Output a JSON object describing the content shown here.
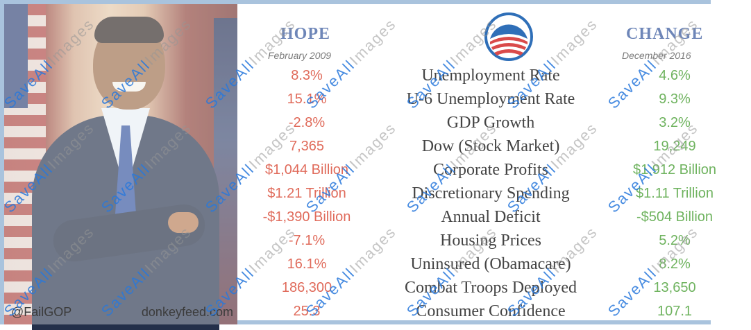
{
  "headers": {
    "hope_title": "HOPE",
    "hope_date": "February 2009",
    "change_title": "CHANGE",
    "change_date": "December 2016"
  },
  "credits": {
    "handle": "@FailGOP",
    "site": "donkeyfeed.com"
  },
  "watermark": {
    "part1": "SaveAll",
    "part2": "Images"
  },
  "rows": [
    {
      "hope": "8.3%",
      "metric": "Unemployment Rate",
      "change": "4.6%"
    },
    {
      "hope": "15.1%",
      "metric": "U-6 Unemployment Rate",
      "change": "9.3%"
    },
    {
      "hope": "-2.8%",
      "metric": "GDP Growth",
      "change": "3.2%"
    },
    {
      "hope": "7,365",
      "metric": "Dow (Stock Market)",
      "change": "19,249"
    },
    {
      "hope": "$1,044 Billion",
      "metric": "Corporate Profits",
      "change": "$1,912 Billion"
    },
    {
      "hope": "$1.21 Trillion",
      "metric": "Discretionary Spending",
      "change": "$1.11 Trillion"
    },
    {
      "hope": "-$1,390 Billion",
      "metric": "Annual Deficit",
      "change": "-$504 Billion"
    },
    {
      "hope": "-7.1%",
      "metric": "Housing Prices",
      "change": "5.2%"
    },
    {
      "hope": "16.1%",
      "metric": "Uninsured (Obamacare)",
      "change": "8.2%"
    },
    {
      "hope": "186,300",
      "metric": "Combat Troops Deployed",
      "change": "13,650"
    },
    {
      "hope": "25.3",
      "metric": "Consumer Confidence",
      "change": "107.1"
    }
  ],
  "colors": {
    "hope": "#e06b5b",
    "change": "#6fb35f",
    "header": "#6e86b8",
    "logo_blue": "#2f6fb8",
    "logo_red": "#d94a4a"
  }
}
